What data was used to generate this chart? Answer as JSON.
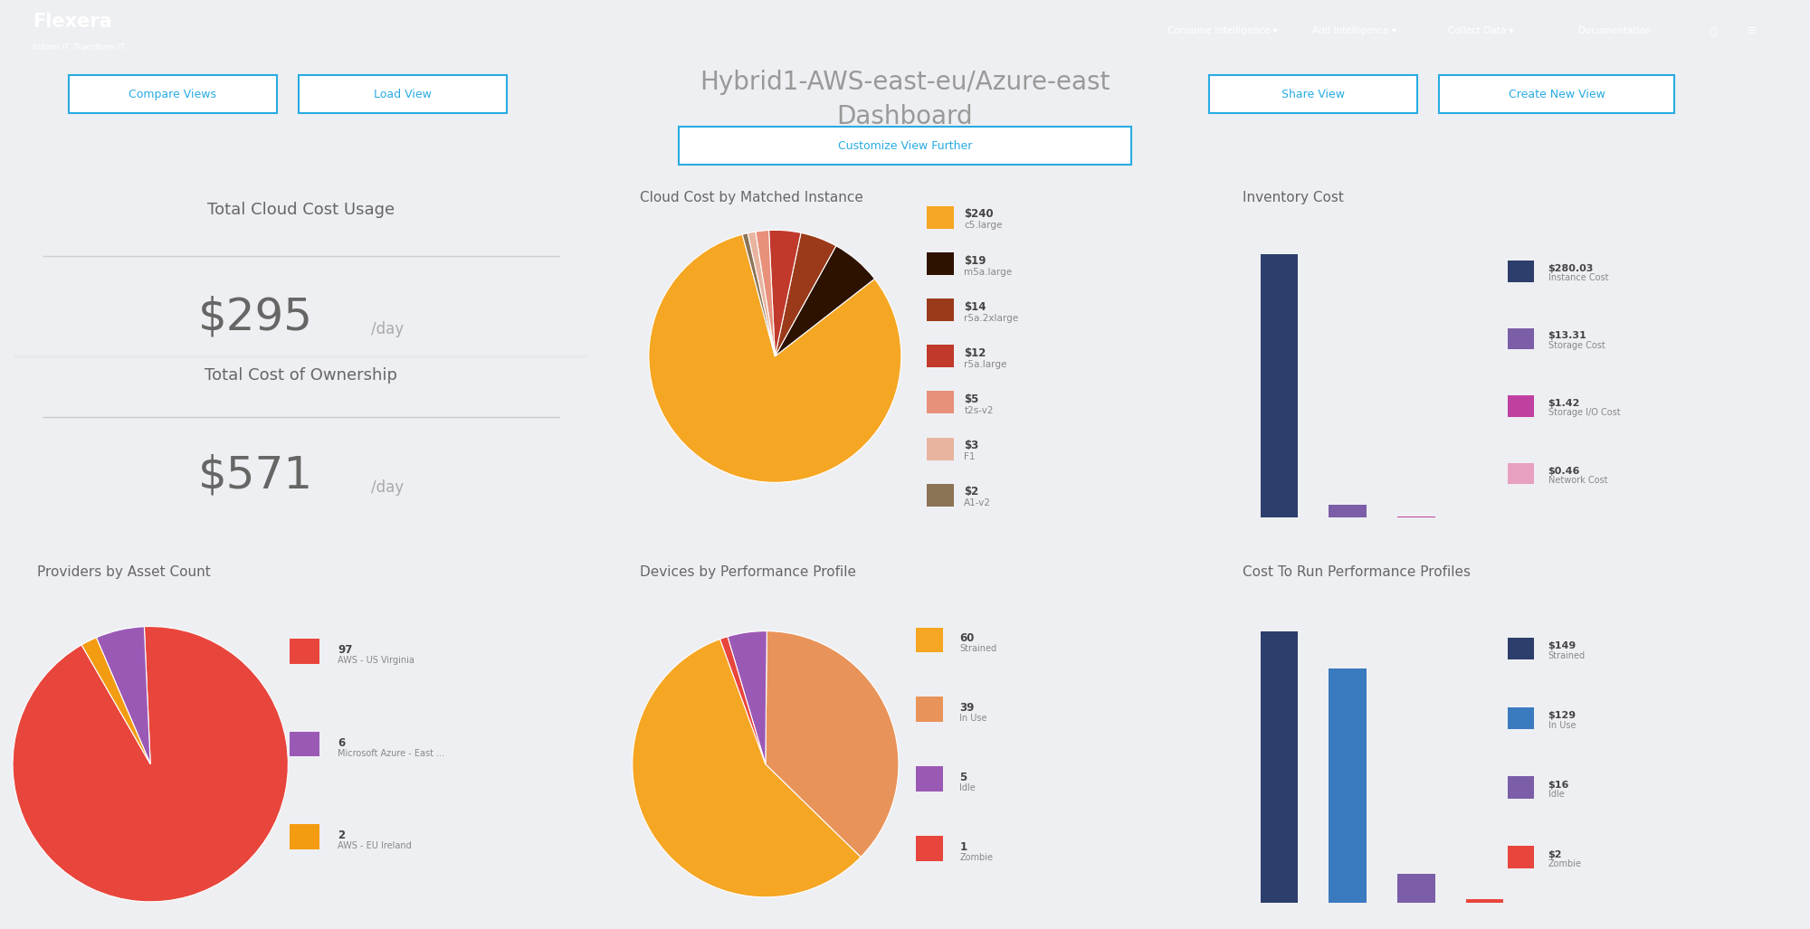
{
  "bg_color": "#eeeff2",
  "panel_color": "#ffffff",
  "header_color": "#2a5298",
  "title_line1": "Hybrid1-AWS-east-eu/Azure-east",
  "title_line2": "Dashboard",
  "flexera_text": "Flexera",
  "flexera_sub": "Inform IT. Transform IT.",
  "nav_items": [
    "Consume Intelligence ▾",
    "Add Intelligence ▾",
    "Collect Data ▾",
    "Documentation"
  ],
  "btn_compare": "Compare Views",
  "btn_load": "Load View",
  "btn_share": "Share View",
  "btn_create": "Create New View",
  "btn_customize": "Customize View Further",
  "panel1_title": "Total Cloud Cost Usage",
  "panel1_value": "$295",
  "panel1_unit": "/day",
  "panel2_title": "Total Cost of Ownership",
  "panel2_value": "$571",
  "panel2_unit": "/day",
  "pie1_title": "Cloud Cost by Matched Instance",
  "pie1_values": [
    240,
    19,
    14,
    12,
    5,
    3,
    2
  ],
  "pie1_labels": [
    "$240",
    "$19",
    "$14",
    "$12",
    "$5",
    "$3",
    "$2"
  ],
  "pie1_sublabels": [
    "c5.large",
    "m5a.large",
    "r5a.2xlarge",
    "r5a.large",
    "t2s-v2",
    "F1",
    "A1-v2"
  ],
  "pie1_colors": [
    "#f5a623",
    "#2d1200",
    "#9b3a1a",
    "#c0392b",
    "#e8907a",
    "#e8b4a0",
    "#8b7355"
  ],
  "bar1_title": "Inventory Cost",
  "bar1_values": [
    280.03,
    13.31,
    1.42,
    0.46
  ],
  "bar1_colors": [
    "#2c3e6b",
    "#7b5ea7",
    "#c040a0",
    "#e8a0c0"
  ],
  "bar1_labels": [
    "$280.03",
    "$13.31",
    "$1.42",
    "$0.46"
  ],
  "bar1_sublabels": [
    "Instance Cost",
    "Storage Cost",
    "Storage I/O Cost",
    "Network Cost"
  ],
  "pie2_title": "Providers by Asset Count",
  "pie2_values": [
    97,
    6,
    2
  ],
  "pie2_labels": [
    "97",
    "6",
    "2"
  ],
  "pie2_sublabels": [
    "AWS - US Virginia",
    "Microsoft Azure - East ...",
    "AWS - EU Ireland"
  ],
  "pie2_colors": [
    "#e8453c",
    "#9b59b6",
    "#f39c12"
  ],
  "pie3_title": "Devices by Performance Profile",
  "pie3_values": [
    60,
    39,
    5,
    1
  ],
  "pie3_labels": [
    "60",
    "39",
    "5",
    "1"
  ],
  "pie3_sublabels": [
    "Strained",
    "In Use",
    "Idle",
    "Zombie"
  ],
  "pie3_colors": [
    "#f5a623",
    "#e8935a",
    "#9b59b6",
    "#e8453c"
  ],
  "bar2_title": "Cost To Run Performance Profiles",
  "bar2_values": [
    149,
    129,
    16,
    2
  ],
  "bar2_colors": [
    "#2c3e6b",
    "#3a7abf",
    "#7b5ea7",
    "#e8453c"
  ],
  "bar2_labels": [
    "$149",
    "$129",
    "$16",
    "$2"
  ],
  "bar2_sublabels": [
    "Strained",
    "In Use",
    "Idle",
    "Zombie"
  ]
}
